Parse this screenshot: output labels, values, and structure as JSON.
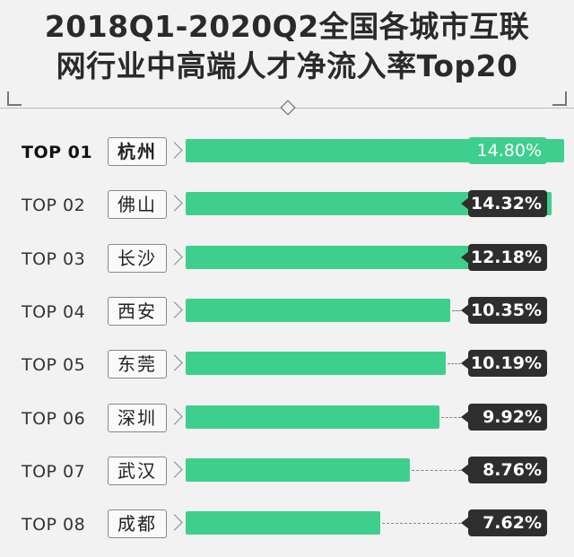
{
  "title_lines": [
    "2018Q1-2020Q2全国各城市互联",
    "网行业中高端人才净流入率Top20"
  ],
  "colors": {
    "bar": "#3ecf8e",
    "badge": "#2e2e2e",
    "background": "#f2f2f2"
  },
  "chart_data": {
    "type": "bar",
    "orientation": "horizontal",
    "title": "2018Q1-2020Q2全国各城市互联网行业中高端人才净流入率Top20",
    "xlim": [
      0,
      16.5
    ],
    "rows": [
      {
        "rank": "TOP 01",
        "city": "杭州",
        "value": 14.8,
        "label": "14.80%"
      },
      {
        "rank": "TOP 02",
        "city": "佛山",
        "value": 14.32,
        "label": "14.32%"
      },
      {
        "rank": "TOP 03",
        "city": "长沙",
        "value": 12.18,
        "label": "12.18%"
      },
      {
        "rank": "TOP 04",
        "city": "西安",
        "value": 10.35,
        "label": "10.35%"
      },
      {
        "rank": "TOP 05",
        "city": "东莞",
        "value": 10.19,
        "label": "10.19%"
      },
      {
        "rank": "TOP 06",
        "city": "深圳",
        "value": 9.92,
        "label": "9.92%"
      },
      {
        "rank": "TOP 07",
        "city": "武汉",
        "value": 8.76,
        "label": "8.76%"
      },
      {
        "rank": "TOP 08",
        "city": "成都",
        "value": 7.62,
        "label": "7.62%"
      }
    ]
  }
}
